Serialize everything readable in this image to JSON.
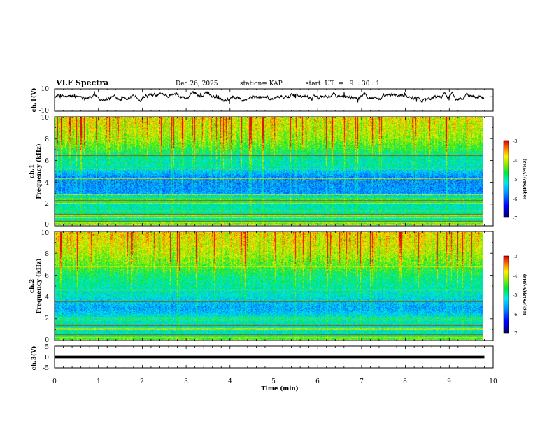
{
  "header": {
    "title": "VLF Spectra",
    "date": "Dec.26, 2025",
    "station": "station= KAP",
    "start": "start  UT  =   9  : 30 : 1"
  },
  "chart_data": [
    {
      "type": "line",
      "title": "ch.1 waveform",
      "ylabel": "ch.1(V)",
      "ylim": [
        -10,
        10
      ],
      "ytick_labels": [
        "10",
        "-10"
      ],
      "xlim": [
        0,
        10
      ],
      "mean": 3,
      "amplitude": 4,
      "data_end_min": 9.8
    },
    {
      "type": "heatmap",
      "title": "ch.1 spectrogram",
      "ylabel": "Frequency (kHz)",
      "channel_label": "ch.1",
      "ylim": [
        0,
        10
      ],
      "ytick_labels": [
        "0",
        "2",
        "4",
        "6",
        "8",
        "10"
      ],
      "xlim": [
        0,
        10
      ],
      "data_end_min": 9.8,
      "zlim": [
        -7,
        -3
      ],
      "colorbar_ticks": [
        "-3",
        "-4",
        "-5",
        "-6",
        "-7"
      ],
      "colorbar_label": "log(PSD)(V²/Hz)",
      "profile_khz": [
        0,
        0.5,
        1,
        1.5,
        2,
        2.3,
        2.6,
        3,
        3.5,
        4,
        4.5,
        5,
        5.5,
        6,
        6.5,
        7,
        8,
        9,
        10
      ],
      "profile_logpsd": [
        -4.2,
        -5.0,
        -5.0,
        -5.0,
        -5.1,
        -4.4,
        -5.1,
        -5.7,
        -5.7,
        -5.7,
        -5.75,
        -5.4,
        -5.0,
        -5.05,
        -4.9,
        -4.6,
        -4.2,
        -4.0,
        -3.9
      ],
      "lines_khz": [
        0.2,
        0.35,
        0.65,
        0.85,
        1.0,
        1.3,
        2.05,
        2.3,
        2.4,
        2.8,
        3.95,
        4.3,
        5.2,
        6.5
      ]
    },
    {
      "type": "heatmap",
      "title": "ch.2 spectrogram",
      "ylabel": "Frequency (kHz)",
      "channel_label": "ch.2",
      "ylim": [
        0,
        10
      ],
      "ytick_labels": [
        "0",
        "2",
        "4",
        "6",
        "8",
        "10"
      ],
      "xlim": [
        0,
        10
      ],
      "data_end_min": 9.8,
      "zlim": [
        -7,
        -3
      ],
      "colorbar_ticks": [
        "-3",
        "-4",
        "-5",
        "-6",
        "-7"
      ],
      "colorbar_label": "log(PSD)(V²/Hz)",
      "profile_khz": [
        0,
        0.5,
        1,
        1.5,
        2,
        2.3,
        2.6,
        3,
        3.5,
        4,
        4.5,
        5,
        5.5,
        6,
        6.5,
        7,
        8,
        9,
        10
      ],
      "profile_logpsd": [
        -4.4,
        -5.1,
        -5.1,
        -5.1,
        -5.0,
        -5.3,
        -5.5,
        -5.6,
        -5.4,
        -5.2,
        -5.1,
        -5.0,
        -4.9,
        -4.8,
        -4.6,
        -4.4,
        -4.1,
        -3.9,
        -3.8
      ],
      "lines_khz": [
        0.2,
        0.45,
        0.9,
        1.05,
        1.3,
        1.8,
        2.0,
        3.5,
        4.65,
        6.8
      ]
    },
    {
      "type": "line",
      "title": "ch.3 waveform",
      "ylabel": "ch.3(V)",
      "ylim": [
        -5,
        5
      ],
      "ytick_labels": [
        "5",
        "0",
        "-5"
      ],
      "xlim": [
        0,
        10
      ],
      "level": 0,
      "band_halfwidth": 0.6,
      "data_end_min": 9.8
    }
  ],
  "x_axis": {
    "label": "Time (min)",
    "tick_labels": [
      "0",
      "1",
      "2",
      "3",
      "4",
      "5",
      "6",
      "7",
      "8",
      "9",
      "10"
    ]
  }
}
